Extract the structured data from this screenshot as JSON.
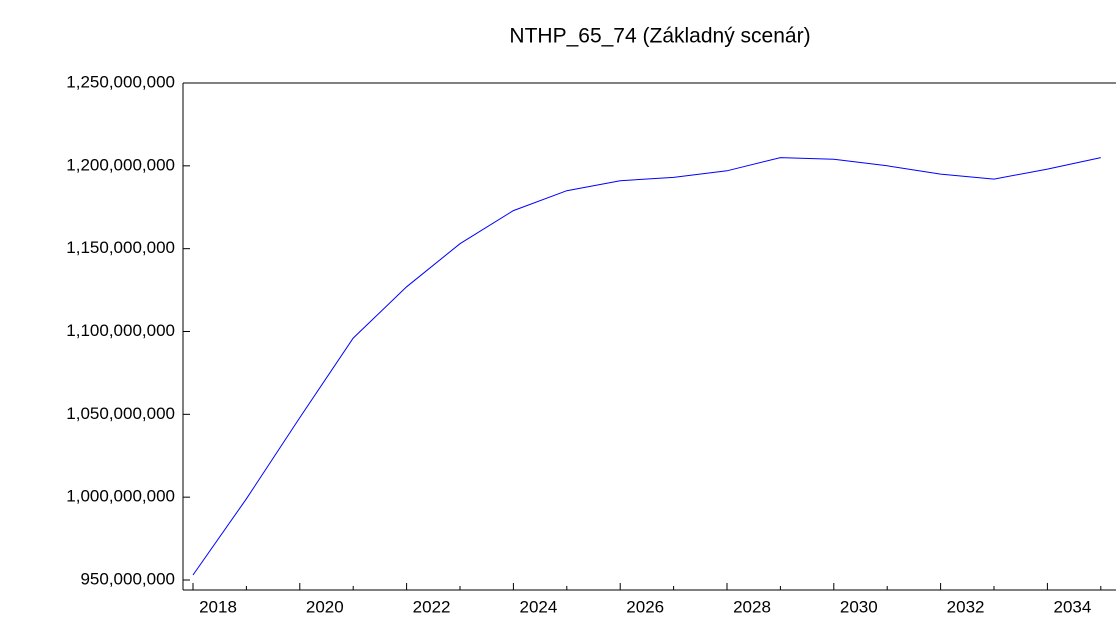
{
  "chart_data": {
    "type": "line",
    "title": "NTHP_65_74 (Základný scenár)",
    "categories": [
      "2018",
      null,
      "2020",
      null,
      "2022",
      null,
      "2024",
      null,
      "2026",
      null,
      "2028",
      null,
      "2030",
      null,
      "2032",
      null,
      "2034",
      null
    ],
    "series": [
      {
        "name": "NTHP_65_74",
        "color": "#0000ff",
        "values": [
          953000000,
          999000000,
          1048000000,
          1096000000,
          1127000000,
          1153000000,
          1173000000,
          1185000000,
          1191000000,
          1193000000,
          1197000000,
          1205000000,
          1204000000,
          1200000000,
          1195000000,
          1192000000,
          1198000000,
          1205000000
        ]
      }
    ],
    "ylim": [
      950000000,
      1250000000
    ],
    "yticks": [
      {
        "value": 950000000,
        "label": "950,000,000"
      },
      {
        "value": 1000000000,
        "label": "1,000,000,000"
      },
      {
        "value": 1050000000,
        "label": "1,050,000,000"
      },
      {
        "value": 1100000000,
        "label": "1,100,000,000"
      },
      {
        "value": 1150000000,
        "label": "1,150,000,000"
      },
      {
        "value": 1200000000,
        "label": "1,200,000,000"
      },
      {
        "value": 1250000000,
        "label": "1,250,000,000"
      }
    ]
  }
}
